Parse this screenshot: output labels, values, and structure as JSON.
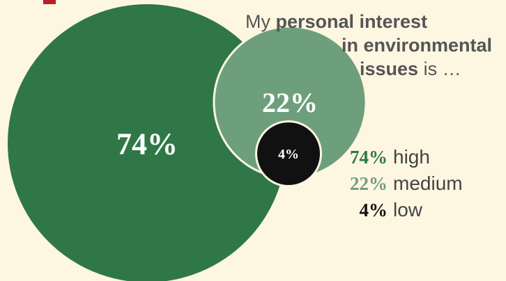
{
  "colors": {
    "background": "#fdf6e1",
    "high": "#2f7747",
    "medium": "#6e9f7c",
    "low": "#111111",
    "accent_red": "#b8202a"
  },
  "question": {
    "part1": "My ",
    "bold1": "personal interest",
    "bold2": "in environmental",
    "bold3": "issues",
    "part2": " is …"
  },
  "chart_data": {
    "type": "bubble",
    "series": [
      {
        "label": "high",
        "value": 74,
        "display": "74%",
        "color": "#2f7747"
      },
      {
        "label": "medium",
        "value": 22,
        "display": "22%",
        "color": "#6e9f7c"
      },
      {
        "label": "low",
        "value": 4,
        "display": "4%",
        "color": "#111111"
      }
    ]
  }
}
